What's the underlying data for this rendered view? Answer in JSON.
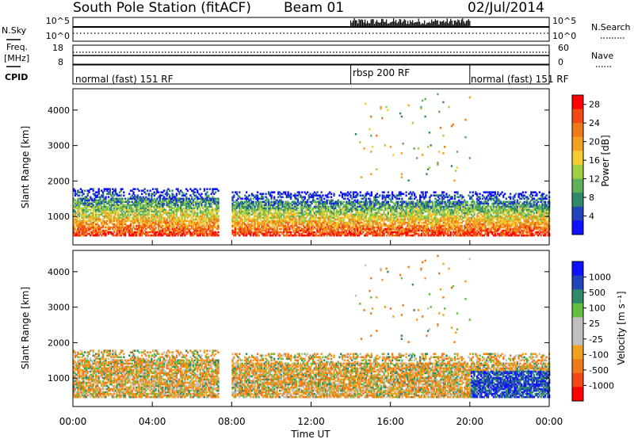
{
  "header": {
    "station": "South Pole Station (fitACF)",
    "beam": "Beam 01",
    "date": "02/Jul/2014"
  },
  "noise_panel": {
    "left_label": "N.Sky",
    "left_ticks": [
      "10^5",
      "10^0"
    ],
    "right_label": "N.Search",
    "right_ticks": [
      "10^5",
      "10^0"
    ]
  },
  "freq_panel": {
    "left_label_1": "Freq.",
    "left_label_2": "[MHz]",
    "left_ticks": [
      "18",
      "8"
    ],
    "right_label": "Nave",
    "right_ticks": [
      "60",
      "0"
    ]
  },
  "cpid_panel": {
    "label": "CPID",
    "segments": [
      {
        "name": "normal (fast) 151 RF",
        "start_hour": 0,
        "end_hour": 14
      },
      {
        "name": "rbsp 200 RF",
        "start_hour": 14,
        "end_hour": 20
      },
      {
        "name": "normal (fast) 151 RF",
        "start_hour": 20,
        "end_hour": 24
      }
    ]
  },
  "chart_data": [
    {
      "type": "heatmap",
      "quantity": "power",
      "ylabel": "Slant Range [km]",
      "xlabel": "Time UT",
      "xlim": [
        0,
        24
      ],
      "ylim": [
        200,
        4600
      ],
      "yticks": [
        "1000",
        "2000",
        "3000",
        "4000"
      ],
      "xticks": [
        "00:00",
        "04:00",
        "08:00",
        "12:00",
        "16:00",
        "20:00",
        "00:00"
      ],
      "colorbar": {
        "label": "Power [dB]",
        "ticks": [
          "4",
          "8",
          "12",
          "16",
          "20",
          "24",
          "28"
        ],
        "range": [
          0,
          30
        ],
        "colors": [
          "#1010ff",
          "#2244bb",
          "#2f8a6a",
          "#5fb05a",
          "#a0d040",
          "#f6cc30",
          "#f2a020",
          "#f07a18",
          "#f04a12",
          "#ff0000"
        ]
      },
      "echo_bands": [
        {
          "start_hour": 0.0,
          "end_hour": 7.3,
          "range_min_km": 450,
          "range_max_km": 1800
        },
        {
          "start_hour": 8.0,
          "end_hour": 24.0,
          "range_min_km": 450,
          "range_max_km": 1700
        },
        {
          "start_hour": 14.0,
          "end_hour": 20.0,
          "range_min_km": 2000,
          "range_max_km": 4500
        }
      ]
    },
    {
      "type": "heatmap",
      "quantity": "velocity",
      "ylabel": "Slant Range [km]",
      "xlabel": "Time UT",
      "xlim": [
        0,
        24
      ],
      "ylim": [
        200,
        4600
      ],
      "yticks": [
        "1000",
        "2000",
        "3000",
        "4000"
      ],
      "xticks": [
        "00:00",
        "04:00",
        "08:00",
        "12:00",
        "16:00",
        "20:00",
        "00:00"
      ],
      "colorbar": {
        "label": "Velocity [m s⁻¹]",
        "ticks": [
          "1000",
          "500",
          "100",
          "25",
          "-25",
          "-100",
          "-500",
          "-1000"
        ],
        "range": [
          -1200,
          1200
        ],
        "colors": [
          "#ff0000",
          "#f04a12",
          "#f07a18",
          "#f2a020",
          "#c0c0c0",
          "#c0c0c0",
          "#60c040",
          "#2f8a6a",
          "#2244bb",
          "#1010ff"
        ]
      }
    }
  ]
}
